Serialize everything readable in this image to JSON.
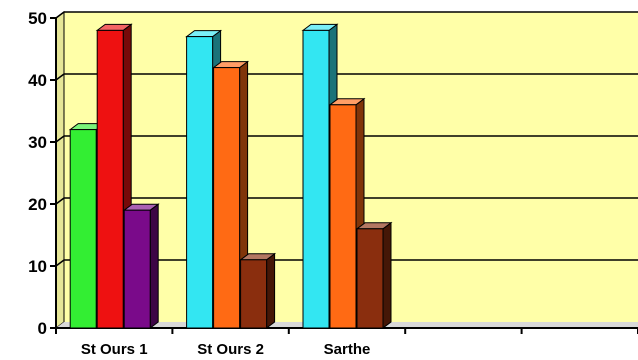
{
  "chart_data": {
    "type": "bar",
    "style": "3d-clustered-column",
    "categories": [
      "St Ours 1",
      "St Ours 2",
      "Sarthe",
      "",
      ""
    ],
    "ylim": [
      0,
      50
    ],
    "yticks": [
      0,
      10,
      20,
      30,
      40,
      50
    ],
    "grid": true,
    "legend": "none",
    "background_color": "#FFFFA8",
    "groups": [
      {
        "category": "St Ours 1",
        "bars": [
          {
            "value": 32,
            "color": "#33EE33"
          },
          {
            "value": 48,
            "color": "#EE1111"
          },
          {
            "value": 19,
            "color": "#7A0A8A"
          }
        ]
      },
      {
        "category": "St Ours 2",
        "bars": [
          {
            "value": 47,
            "color": "#33E6F2"
          },
          {
            "value": 42,
            "color": "#FF6A14"
          },
          {
            "value": 11,
            "color": "#8A2E0E"
          }
        ]
      },
      {
        "category": "Sarthe",
        "bars": [
          {
            "value": 48,
            "color": "#33E6F2"
          },
          {
            "value": 36,
            "color": "#FF6A14"
          },
          {
            "value": 16,
            "color": "#8A2E0E"
          }
        ]
      }
    ]
  }
}
